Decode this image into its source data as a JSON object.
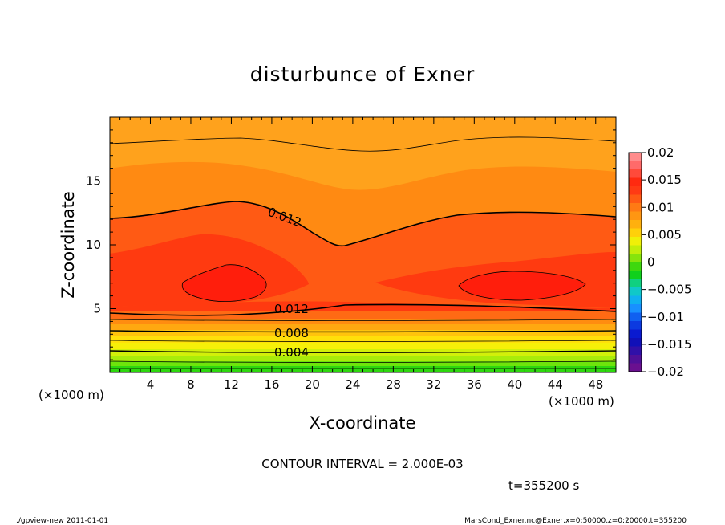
{
  "chart_data": {
    "type": "heatmap",
    "title": "disturbunce of Exner",
    "xlabel": "X-coordinate",
    "ylabel": "Z-coordinate",
    "x_unit": "(×1000 m)",
    "y_unit": "(×1000 m)",
    "xlim": [
      0,
      50
    ],
    "ylim": [
      0,
      20
    ],
    "x_ticks": [
      4,
      8,
      12,
      16,
      20,
      24,
      28,
      32,
      36,
      40,
      44,
      48
    ],
    "y_ticks": [
      5,
      10,
      15
    ],
    "colorbar": {
      "levels": [
        0.02,
        0.015,
        0.01,
        0.005,
        0,
        -0.005,
        -0.01,
        -0.015,
        -0.02
      ],
      "labels": [
        "0.02",
        "0.015",
        "0.01",
        "0.005",
        "0",
        "−0.005",
        "−0.01",
        "−0.015",
        "−0.02"
      ]
    },
    "contour_labels": [
      "0.012",
      "0.012",
      "0.008",
      "0.004"
    ],
    "contour_interval_text": "CONTOUR INTERVAL = 2.000E-03",
    "time_text": "t=355200 s"
  },
  "footer": {
    "left": "./gpview-new 2011-01-01",
    "right": "MarsCond_Exner.nc@Exner,x=0:50000,z=0:20000,t=355200"
  },
  "colors": {
    "band_top": "#ffa21c",
    "band_orange": "#ff8a12",
    "band_redorange": "#ff5a14",
    "band_red": "#ff3a10",
    "core": "#ff1e0c"
  }
}
